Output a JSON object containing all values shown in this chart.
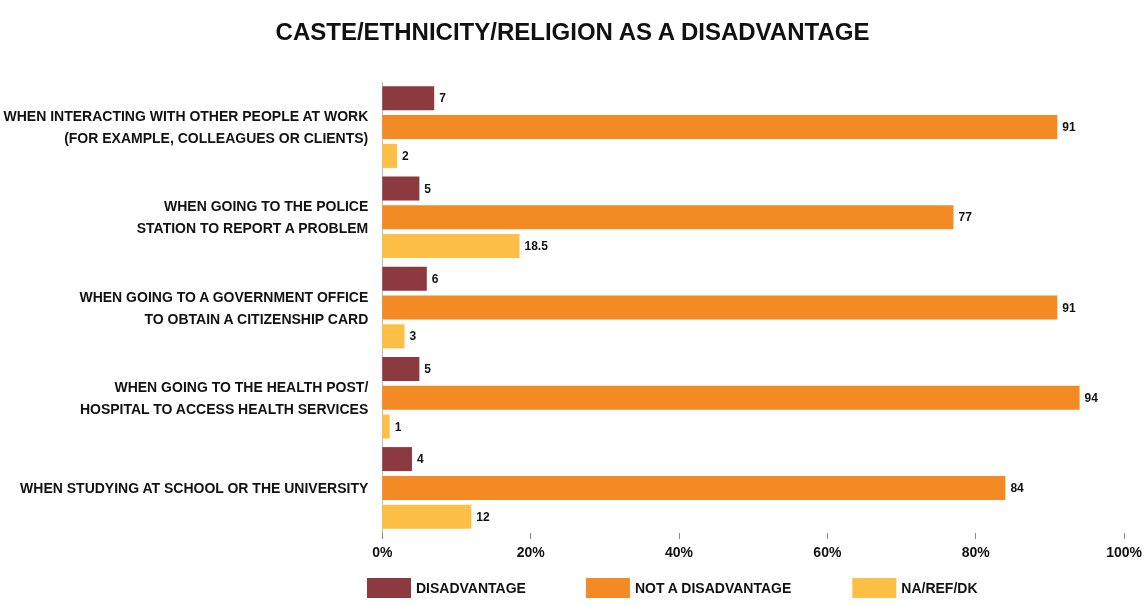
{
  "chart_data": {
    "type": "bar",
    "orientation": "horizontal",
    "title": "CASTE/ETHNICITY/RELIGION AS A DISADVANTAGE",
    "categories": [
      "WHEN INTERACTING WITH OTHER PEOPLE AT WORK\n(FOR EXAMPLE, COLLEAGUES OR CLIENTS)",
      "WHEN GOING TO THE POLICE\nSTATION TO REPORT A PROBLEM",
      "WHEN GOING TO A GOVERNMENT OFFICE\nTO OBTAIN A CITIZENSHIP CARD",
      "WHEN GOING TO THE HEALTH POST/\nHOSPITAL TO ACCESS HEALTH SERVICES",
      "WHEN STUDYING AT SCHOOL OR THE UNIVERSITY"
    ],
    "series": [
      {
        "name": "DISADVANTAGE",
        "color": "#8c3a3f",
        "values": [
          7,
          5,
          6,
          5,
          4
        ]
      },
      {
        "name": "NOT A DISADVANTAGE",
        "color": "#f38a24",
        "values": [
          91,
          77,
          91,
          94,
          84
        ]
      },
      {
        "name": "NA/REF/DK",
        "color": "#fdbf45",
        "values": [
          2,
          18.5,
          3,
          1,
          12
        ]
      }
    ],
    "xlim": [
      0,
      100
    ],
    "xticks": [
      {
        "value": 0,
        "label": "0%"
      },
      {
        "value": 20,
        "label": "20%"
      },
      {
        "value": 40,
        "label": "40%"
      },
      {
        "value": 60,
        "label": "60%"
      },
      {
        "value": 80,
        "label": "80%"
      },
      {
        "value": 100,
        "label": "100%"
      }
    ],
    "data_labels": true,
    "grid": false,
    "legend": "bottom"
  }
}
